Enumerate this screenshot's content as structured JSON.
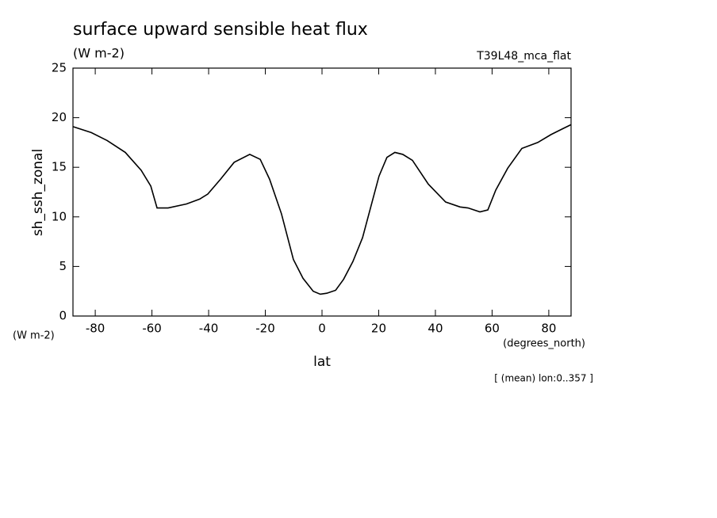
{
  "chart_data": {
    "type": "line",
    "title": "surface upward sensible heat flux",
    "units": "(W m-2)",
    "dataset": "T39L48_mca_flat",
    "y_label": "sh_ssh_zonal",
    "y_units": "(W m-2)",
    "x_units": "(degrees_north)",
    "x_label": "lat",
    "note": "[ (mean) lon:0..357 ]",
    "color": "#000000",
    "x": [
      -87.86,
      -81.4,
      -75.8,
      -69.4,
      -63.8,
      -60.4,
      -58.2,
      -54.3,
      -47.8,
      -43.1,
      -40.3,
      -35.8,
      -31.0,
      -25.5,
      -21.8,
      -18.5,
      -14.3,
      -10.1,
      -6.7,
      -3.1,
      -0.6,
      1.7,
      4.8,
      7.6,
      10.9,
      14.3,
      20.1,
      22.9,
      25.7,
      28.5,
      31.9,
      37.5,
      43.6,
      48.7,
      51.5,
      55.7,
      58.5,
      61.3,
      65.5,
      70.5,
      76.1,
      80.8,
      85.0,
      87.86
    ],
    "values": [
      19.1,
      18.5,
      17.7,
      16.5,
      14.7,
      13.1,
      10.9,
      10.9,
      11.3,
      11.8,
      12.3,
      13.8,
      15.5,
      16.3,
      15.8,
      13.8,
      10.3,
      5.7,
      3.8,
      2.5,
      2.2,
      2.3,
      2.6,
      3.7,
      5.5,
      7.9,
      14.1,
      16.0,
      16.5,
      16.3,
      15.7,
      13.3,
      11.5,
      11.0,
      10.9,
      10.5,
      10.7,
      12.7,
      14.9,
      16.9,
      17.5,
      18.3,
      18.9,
      19.3
    ],
    "xlim": [
      -87.86,
      87.86
    ],
    "xticks": [
      -80,
      -60,
      -40,
      -20,
      0,
      20,
      40,
      60,
      80
    ],
    "ylim": [
      0,
      25
    ],
    "yticks": [
      0,
      5,
      10,
      15,
      20,
      25
    ]
  }
}
